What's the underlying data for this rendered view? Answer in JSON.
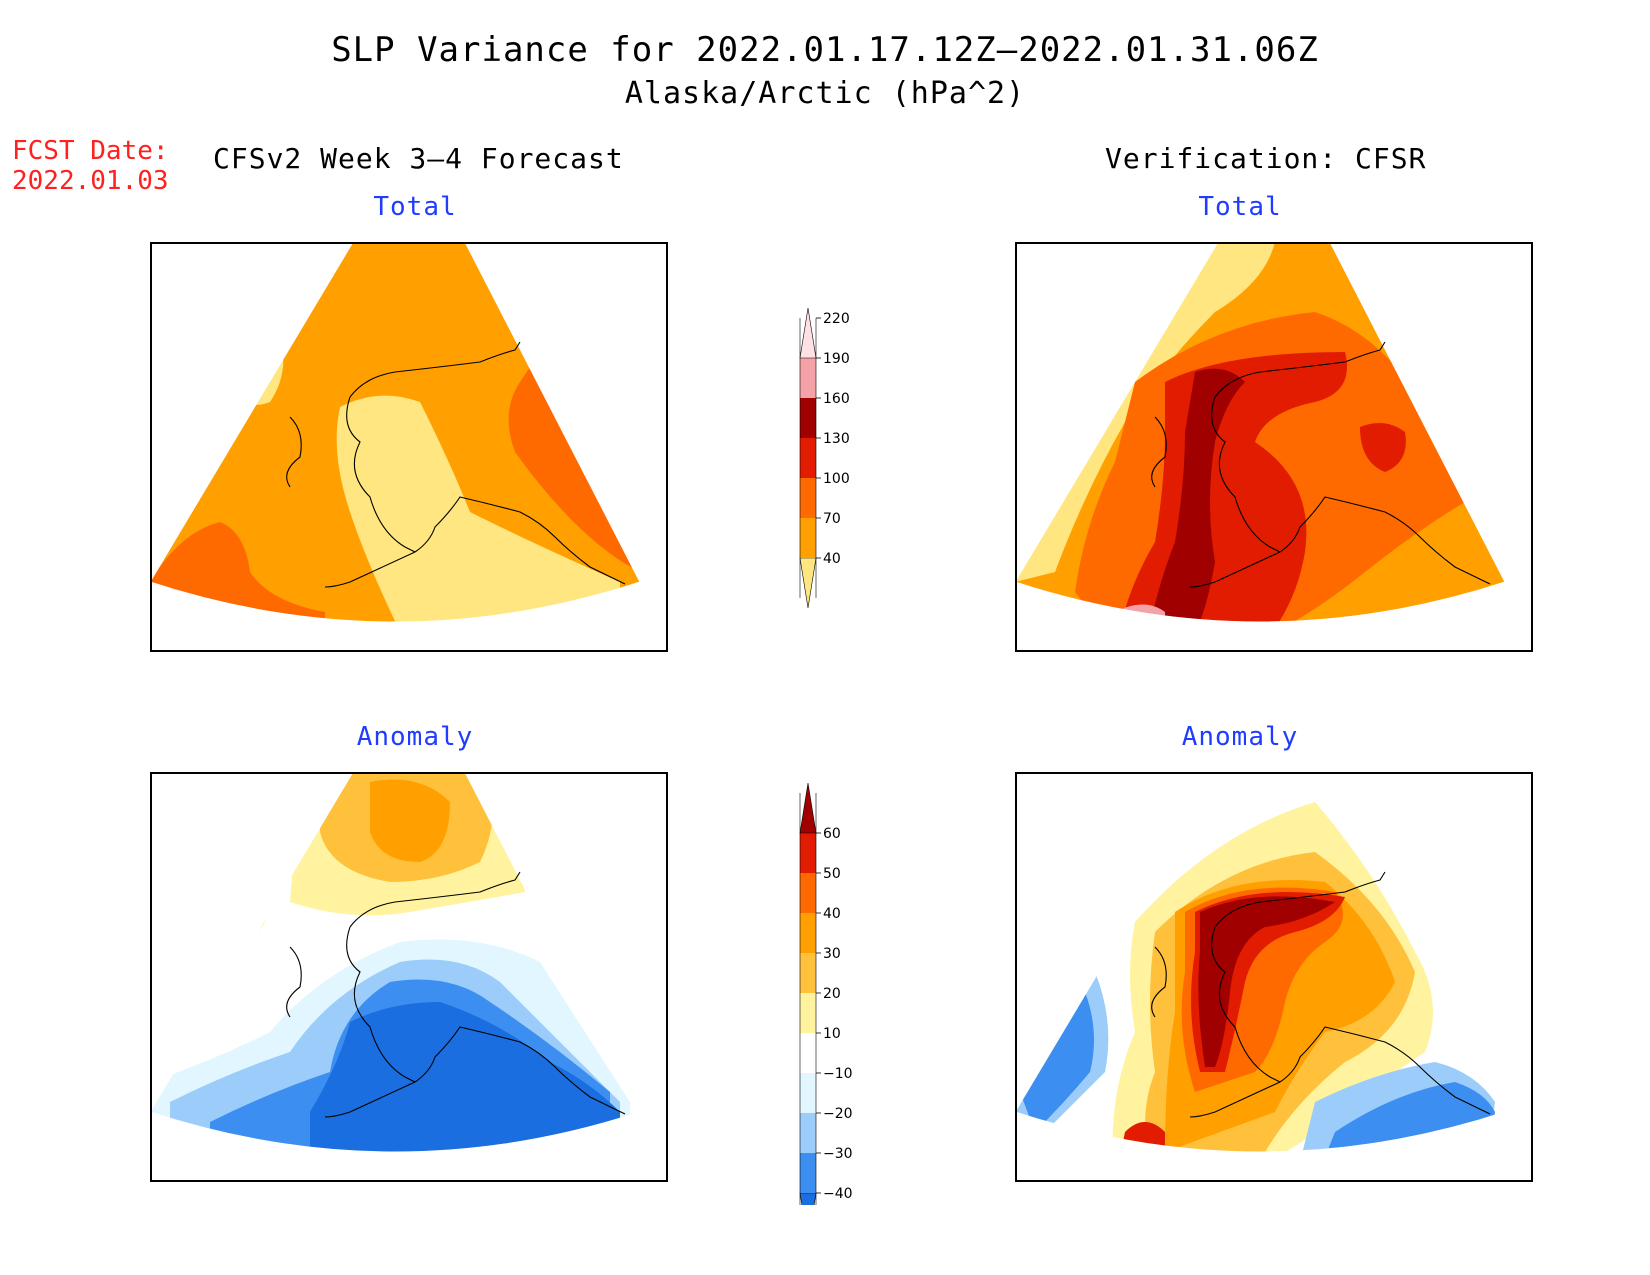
{
  "title": {
    "line1": "SLP Variance for 2022.01.17.12Z—2022.01.31.06Z",
    "line2": "Alaska/Arctic (hPa^2)"
  },
  "forecast_date": {
    "label": "FCST Date:",
    "value": "2022.01.03"
  },
  "columns": {
    "left": "CFSv2 Week 3—4 Forecast",
    "right": "Verification: CFSR"
  },
  "panels": [
    {
      "id": "forecast-total",
      "subtitle": "Total"
    },
    {
      "id": "verification-total",
      "subtitle": "Total"
    },
    {
      "id": "forecast-anomaly",
      "subtitle": "Anomaly"
    },
    {
      "id": "verification-anomaly",
      "subtitle": "Anomaly"
    }
  ],
  "colorbars": {
    "total": {
      "labels": [
        "40",
        "70",
        "100",
        "130",
        "160",
        "190",
        "220"
      ],
      "colors": [
        "#ffe680",
        "#ffa000",
        "#ff6a00",
        "#e21c00",
        "#a00000",
        "#f4a2a8",
        "#ffe0e3"
      ]
    },
    "anomaly": {
      "labels": [
        "−40",
        "−30",
        "−20",
        "−10",
        "10",
        "20",
        "30",
        "40",
        "50",
        "60"
      ],
      "colors": [
        "#1a6ee0",
        "#3c8ff0",
        "#9ccdfa",
        "#e2f6ff",
        "#ffffff",
        "#fff3a0",
        "#ffc03c",
        "#ffa000",
        "#ff6a00",
        "#e21c00",
        "#a00000"
      ]
    }
  },
  "colors": {
    "title_text": "#000000",
    "subtitle_text": "#1f3cff",
    "forecast_date_text": "#ff2020"
  }
}
